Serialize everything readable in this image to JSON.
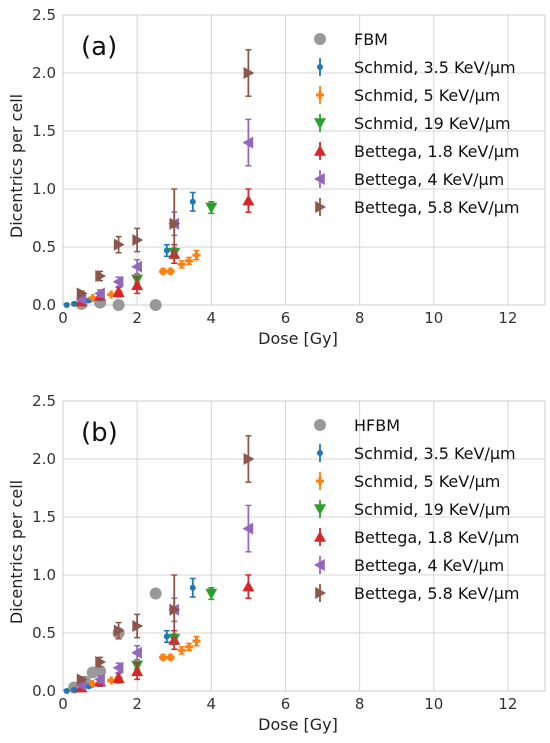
{
  "chart_data": [
    {
      "type": "scatter",
      "panel_label": "(a)",
      "xlabel": "Dose [Gy]",
      "ylabel": "Dicentrics per cell",
      "xlim": [
        0,
        13
      ],
      "ylim": [
        0,
        2.5
      ],
      "xticks": [
        0,
        2,
        4,
        6,
        8,
        10,
        12
      ],
      "yticks": [
        0.0,
        0.5,
        1.0,
        1.5,
        2.0,
        2.5
      ],
      "grid": true,
      "legend_position": "upper-right",
      "series": [
        {
          "name": "FBM",
          "marker": "circle",
          "color": "#999999",
          "points": [
            {
              "x": 0.5,
              "y": 0.01
            },
            {
              "x": 1.0,
              "y": 0.02
            },
            {
              "x": 1.5,
              "y": 0.0
            },
            {
              "x": 2.5,
              "y": 0.0
            }
          ]
        },
        {
          "name": "Schmid, 3.5 KeV/μm",
          "marker": "dot",
          "color": "#1f77b4",
          "points": [
            {
              "x": 0.1,
              "y": 0.0,
              "err": 0.01
            },
            {
              "x": 0.3,
              "y": 0.01,
              "err": 0.01
            },
            {
              "x": 0.5,
              "y": 0.02,
              "err": 0.01
            },
            {
              "x": 0.7,
              "y": 0.04,
              "err": 0.01
            },
            {
              "x": 1.0,
              "y": 0.06,
              "err": 0.02
            },
            {
              "x": 2.8,
              "y": 0.47,
              "err": 0.05
            },
            {
              "x": 3.5,
              "y": 0.89,
              "err": 0.08
            }
          ]
        },
        {
          "name": "Schmid, 5 KeV/μm",
          "marker": "plus",
          "color": "#ff7f0e",
          "points": [
            {
              "x": 0.5,
              "y": 0.03,
              "err": 0.01
            },
            {
              "x": 0.8,
              "y": 0.06,
              "err": 0.01
            },
            {
              "x": 1.3,
              "y": 0.09,
              "err": 0.01
            },
            {
              "x": 1.5,
              "y": 0.11,
              "err": 0.02
            },
            {
              "x": 2.7,
              "y": 0.29,
              "err": 0.02
            },
            {
              "x": 2.9,
              "y": 0.29,
              "err": 0.02
            },
            {
              "x": 3.2,
              "y": 0.35,
              "err": 0.03
            },
            {
              "x": 3.4,
              "y": 0.38,
              "err": 0.03
            },
            {
              "x": 3.6,
              "y": 0.43,
              "err": 0.04
            }
          ]
        },
        {
          "name": "Schmid, 19 KeV/μm",
          "marker": "triangle-down",
          "color": "#2ca02c",
          "points": [
            {
              "x": 2.0,
              "y": 0.22,
              "err": 0.03
            },
            {
              "x": 3.0,
              "y": 0.45,
              "err": 0.04
            },
            {
              "x": 4.0,
              "y": 0.84,
              "err": 0.05
            }
          ]
        },
        {
          "name": "Bettega, 1.8 KeV/μm",
          "marker": "triangle-up",
          "color": "#d62728",
          "points": [
            {
              "x": 0.5,
              "y": 0.03,
              "err": 0.02
            },
            {
              "x": 1.0,
              "y": 0.08,
              "err": 0.03
            },
            {
              "x": 1.5,
              "y": 0.11,
              "err": 0.04
            },
            {
              "x": 2.0,
              "y": 0.17,
              "err": 0.07
            },
            {
              "x": 3.0,
              "y": 0.44,
              "err": 0.08
            },
            {
              "x": 5.0,
              "y": 0.9,
              "err": 0.1
            }
          ]
        },
        {
          "name": "Bettega, 4 KeV/μm",
          "marker": "triangle-left",
          "color": "#9467bd",
          "points": [
            {
              "x": 0.5,
              "y": 0.05,
              "err": 0.02
            },
            {
              "x": 1.0,
              "y": 0.1,
              "err": 0.03
            },
            {
              "x": 1.5,
              "y": 0.2,
              "err": 0.04
            },
            {
              "x": 2.0,
              "y": 0.33,
              "err": 0.06
            },
            {
              "x": 3.0,
              "y": 0.7,
              "err": 0.1
            },
            {
              "x": 5.0,
              "y": 1.4,
              "err": 0.2
            }
          ]
        },
        {
          "name": "Bettega, 5.8 KeV/μm",
          "marker": "triangle-right",
          "color": "#8c564b",
          "points": [
            {
              "x": 0.5,
              "y": 0.1,
              "err": 0.02
            },
            {
              "x": 1.0,
              "y": 0.25,
              "err": 0.04
            },
            {
              "x": 1.5,
              "y": 0.52,
              "err": 0.07
            },
            {
              "x": 2.0,
              "y": 0.56,
              "err": 0.1
            },
            {
              "x": 3.0,
              "y": 0.7,
              "err": 0.3
            },
            {
              "x": 5.0,
              "y": 2.0,
              "err": 0.2
            }
          ]
        }
      ]
    },
    {
      "type": "scatter",
      "panel_label": "(b)",
      "xlabel": "Dose [Gy]",
      "ylabel": "Dicentrics per cell",
      "xlim": [
        0,
        13
      ],
      "ylim": [
        0,
        2.5
      ],
      "xticks": [
        0,
        2,
        4,
        6,
        8,
        10,
        12
      ],
      "yticks": [
        0.0,
        0.5,
        1.0,
        1.5,
        2.0,
        2.5
      ],
      "grid": true,
      "legend_position": "upper-right",
      "series": [
        {
          "name": "HFBM",
          "marker": "circle",
          "color": "#999999",
          "points": [
            {
              "x": 0.3,
              "y": 0.03
            },
            {
              "x": 0.6,
              "y": 0.08
            },
            {
              "x": 0.8,
              "y": 0.16
            },
            {
              "x": 1.0,
              "y": 0.17
            },
            {
              "x": 1.5,
              "y": 0.5
            },
            {
              "x": 2.5,
              "y": 0.84
            }
          ]
        },
        {
          "name": "Schmid, 3.5 KeV/μm",
          "marker": "dot",
          "color": "#1f77b4",
          "points": [
            {
              "x": 0.1,
              "y": 0.0,
              "err": 0.01
            },
            {
              "x": 0.3,
              "y": 0.01,
              "err": 0.01
            },
            {
              "x": 0.5,
              "y": 0.02,
              "err": 0.01
            },
            {
              "x": 0.7,
              "y": 0.04,
              "err": 0.01
            },
            {
              "x": 1.0,
              "y": 0.06,
              "err": 0.02
            },
            {
              "x": 2.8,
              "y": 0.47,
              "err": 0.05
            },
            {
              "x": 3.5,
              "y": 0.89,
              "err": 0.08
            }
          ]
        },
        {
          "name": "Schmid, 5 KeV/μm",
          "marker": "plus",
          "color": "#ff7f0e",
          "points": [
            {
              "x": 0.5,
              "y": 0.03,
              "err": 0.01
            },
            {
              "x": 0.8,
              "y": 0.06,
              "err": 0.01
            },
            {
              "x": 1.3,
              "y": 0.09,
              "err": 0.01
            },
            {
              "x": 1.5,
              "y": 0.11,
              "err": 0.02
            },
            {
              "x": 2.7,
              "y": 0.29,
              "err": 0.02
            },
            {
              "x": 2.9,
              "y": 0.29,
              "err": 0.02
            },
            {
              "x": 3.2,
              "y": 0.35,
              "err": 0.03
            },
            {
              "x": 3.4,
              "y": 0.38,
              "err": 0.03
            },
            {
              "x": 3.6,
              "y": 0.43,
              "err": 0.04
            }
          ]
        },
        {
          "name": "Schmid, 19 KeV/μm",
          "marker": "triangle-down",
          "color": "#2ca02c",
          "points": [
            {
              "x": 2.0,
              "y": 0.22,
              "err": 0.03
            },
            {
              "x": 3.0,
              "y": 0.45,
              "err": 0.04
            },
            {
              "x": 4.0,
              "y": 0.84,
              "err": 0.05
            }
          ]
        },
        {
          "name": "Bettega, 1.8 KeV/μm",
          "marker": "triangle-up",
          "color": "#d62728",
          "points": [
            {
              "x": 0.5,
              "y": 0.03,
              "err": 0.02
            },
            {
              "x": 1.0,
              "y": 0.08,
              "err": 0.03
            },
            {
              "x": 1.5,
              "y": 0.11,
              "err": 0.04
            },
            {
              "x": 2.0,
              "y": 0.17,
              "err": 0.07
            },
            {
              "x": 3.0,
              "y": 0.44,
              "err": 0.08
            },
            {
              "x": 5.0,
              "y": 0.9,
              "err": 0.1
            }
          ]
        },
        {
          "name": "Bettega, 4 KeV/μm",
          "marker": "triangle-left",
          "color": "#9467bd",
          "points": [
            {
              "x": 0.5,
              "y": 0.05,
              "err": 0.02
            },
            {
              "x": 1.0,
              "y": 0.1,
              "err": 0.03
            },
            {
              "x": 1.5,
              "y": 0.2,
              "err": 0.04
            },
            {
              "x": 2.0,
              "y": 0.33,
              "err": 0.06
            },
            {
              "x": 3.0,
              "y": 0.7,
              "err": 0.1
            },
            {
              "x": 5.0,
              "y": 1.4,
              "err": 0.2
            }
          ]
        },
        {
          "name": "Bettega, 5.8 KeV/μm",
          "marker": "triangle-right",
          "color": "#8c564b",
          "points": [
            {
              "x": 0.5,
              "y": 0.1,
              "err": 0.02
            },
            {
              "x": 1.0,
              "y": 0.25,
              "err": 0.04
            },
            {
              "x": 1.5,
              "y": 0.52,
              "err": 0.07
            },
            {
              "x": 2.0,
              "y": 0.56,
              "err": 0.1
            },
            {
              "x": 3.0,
              "y": 0.7,
              "err": 0.3
            },
            {
              "x": 5.0,
              "y": 2.0,
              "err": 0.2
            }
          ]
        }
      ]
    }
  ]
}
